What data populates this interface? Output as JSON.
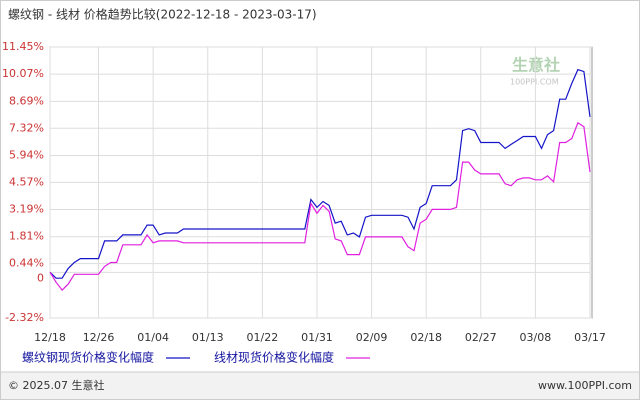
{
  "chart_data": {
    "type": "line",
    "title": "螺纹钢 - 线材 价格趋势比较(2022-12-18 - 2023-03-17)",
    "categories": [
      "12/18",
      null,
      null,
      null,
      null,
      null,
      null,
      null,
      "12/26",
      null,
      null,
      null,
      null,
      null,
      null,
      null,
      null,
      "01/04",
      null,
      null,
      null,
      null,
      null,
      null,
      null,
      null,
      "01/13",
      null,
      null,
      null,
      null,
      null,
      null,
      null,
      null,
      "01/22",
      null,
      null,
      null,
      null,
      null,
      null,
      null,
      null,
      "01/31",
      null,
      null,
      null,
      null,
      null,
      null,
      null,
      null,
      "02/09",
      null,
      null,
      null,
      null,
      null,
      null,
      null,
      null,
      "02/18",
      null,
      null,
      null,
      null,
      null,
      null,
      null,
      null,
      "02/27",
      null,
      null,
      null,
      null,
      null,
      null,
      null,
      null,
      "03/08",
      null,
      null,
      null,
      null,
      null,
      null,
      null,
      null,
      "03/17"
    ],
    "series": [
      {
        "name": "螺纹钢现货价格变化幅度",
        "color": "#1414c8",
        "values": [
          0,
          -0.3,
          -0.3,
          0.2,
          0.5,
          0.7,
          0.7,
          0.7,
          0.7,
          1.6,
          1.6,
          1.6,
          1.9,
          1.9,
          1.9,
          1.9,
          2.4,
          2.4,
          1.9,
          2.0,
          2.0,
          2.0,
          2.2,
          2.2,
          2.2,
          2.2,
          2.2,
          2.2,
          2.2,
          2.2,
          2.2,
          2.2,
          2.2,
          2.2,
          2.2,
          2.2,
          2.2,
          2.2,
          2.2,
          2.2,
          2.2,
          2.2,
          2.2,
          3.7,
          3.3,
          3.6,
          3.4,
          2.5,
          2.6,
          1.9,
          2.0,
          1.8,
          2.8,
          2.9,
          2.9,
          2.9,
          2.9,
          2.9,
          2.9,
          2.8,
          2.2,
          3.3,
          3.5,
          4.4,
          4.4,
          4.4,
          4.4,
          4.7,
          7.2,
          7.3,
          7.2,
          6.6,
          6.6,
          6.6,
          6.6,
          6.3,
          6.5,
          6.7,
          6.9,
          6.9,
          6.9,
          6.3,
          7.0,
          7.2,
          8.8,
          8.8,
          9.6,
          10.3,
          10.2,
          7.9
        ]
      },
      {
        "name": "线材现货价格变化幅度",
        "color": "#e020e0",
        "values": [
          0,
          -0.5,
          -0.9,
          -0.6,
          -0.1,
          -0.1,
          -0.1,
          -0.1,
          -0.1,
          0.3,
          0.5,
          0.5,
          1.4,
          1.4,
          1.4,
          1.4,
          1.9,
          1.5,
          1.6,
          1.6,
          1.6,
          1.6,
          1.5,
          1.5,
          1.5,
          1.5,
          1.5,
          1.5,
          1.5,
          1.5,
          1.5,
          1.5,
          1.5,
          1.5,
          1.5,
          1.5,
          1.5,
          1.5,
          1.5,
          1.5,
          1.5,
          1.5,
          1.5,
          3.5,
          3.0,
          3.4,
          3.1,
          1.7,
          1.6,
          0.9,
          0.9,
          0.9,
          1.8,
          1.8,
          1.8,
          1.8,
          1.8,
          1.8,
          1.8,
          1.3,
          1.1,
          2.5,
          2.7,
          3.2,
          3.2,
          3.2,
          3.2,
          3.3,
          5.6,
          5.6,
          5.2,
          5.0,
          5.0,
          5.0,
          5.0,
          4.5,
          4.4,
          4.7,
          4.8,
          4.8,
          4.7,
          4.7,
          4.9,
          4.6,
          6.6,
          6.6,
          6.8,
          7.6,
          7.4,
          5.1
        ]
      }
    ],
    "ylim": [
      -2.32,
      11.45
    ],
    "yticks": [
      {
        "value": 11.45,
        "label": "11.45%"
      },
      {
        "value": 10.07,
        "label": "10.07%"
      },
      {
        "value": 8.69,
        "label": "8.69%"
      },
      {
        "value": 7.32,
        "label": "7.32%"
      },
      {
        "value": 5.94,
        "label": "5.94%"
      },
      {
        "value": 4.57,
        "label": "4.57%"
      },
      {
        "value": 3.19,
        "label": "3.19%"
      },
      {
        "value": 1.81,
        "label": "1.81%"
      },
      {
        "value": 0.44,
        "label": "0.44%"
      },
      0,
      {
        "value": -2.32,
        "label": "-2.32%"
      }
    ],
    "grid": true,
    "watermark": {
      "name": "生意社",
      "site": "100PPI.COM"
    },
    "footer": {
      "copyright": "© 2025.07 生意社",
      "site": "www.100PPI.com"
    }
  }
}
